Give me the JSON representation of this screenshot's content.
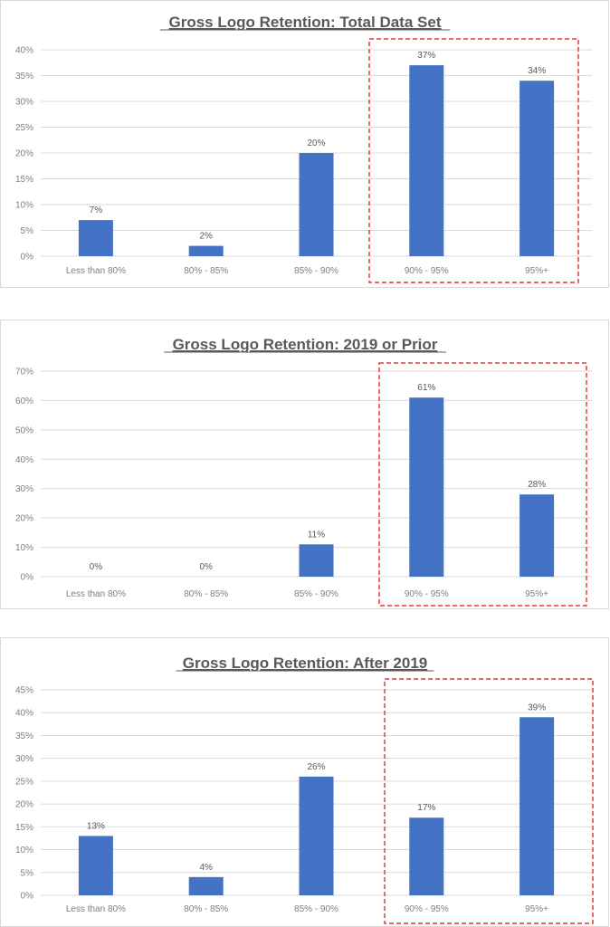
{
  "colors": {
    "bar": "#4472C4",
    "grid": "#d9d9d9",
    "highlight": "#e03c3c",
    "border": "#d9d9d9"
  },
  "chart_data": [
    {
      "type": "bar",
      "title": "Gross Logo Retention: Total Data Set",
      "categories": [
        "Less than 80%",
        "80% - 85%",
        "85% - 90%",
        "90% - 95%",
        "95%+"
      ],
      "values": [
        7,
        2,
        20,
        37,
        34
      ],
      "value_labels": [
        "7%",
        "2%",
        "20%",
        "37%",
        "34%"
      ],
      "yticks": [
        "0%",
        "5%",
        "10%",
        "15%",
        "20%",
        "25%",
        "30%",
        "35%",
        "40%"
      ],
      "ylim": [
        0,
        40
      ],
      "grid": true,
      "highlight_categories": [
        "90% - 95%",
        "95%+"
      ]
    },
    {
      "type": "bar",
      "title": "Gross Logo Retention: 2019 or Prior",
      "categories": [
        "Less than 80%",
        "80% - 85%",
        "85% - 90%",
        "90% - 95%",
        "95%+"
      ],
      "values": [
        0,
        0,
        11,
        61,
        28
      ],
      "value_labels": [
        "0%",
        "0%",
        "11%",
        "61%",
        "28%"
      ],
      "yticks": [
        "0%",
        "10%",
        "20%",
        "30%",
        "40%",
        "50%",
        "60%",
        "70%"
      ],
      "ylim": [
        0,
        70
      ],
      "grid": true,
      "highlight_categories": [
        "90% - 95%",
        "95%+"
      ]
    },
    {
      "type": "bar",
      "title": "Gross Logo Retention: After 2019",
      "categories": [
        "Less than 80%",
        "80% - 85%",
        "85% - 90%",
        "90% - 95%",
        "95%+"
      ],
      "values": [
        13,
        4,
        26,
        17,
        39
      ],
      "value_labels": [
        "13%",
        "4%",
        "26%",
        "17%",
        "39%"
      ],
      "yticks": [
        "0%",
        "5%",
        "10%",
        "15%",
        "20%",
        "25%",
        "30%",
        "35%",
        "40%",
        "45%"
      ],
      "ylim": [
        0,
        45
      ],
      "grid": true,
      "highlight_categories": [
        "90% - 95%",
        "95%+"
      ]
    }
  ]
}
